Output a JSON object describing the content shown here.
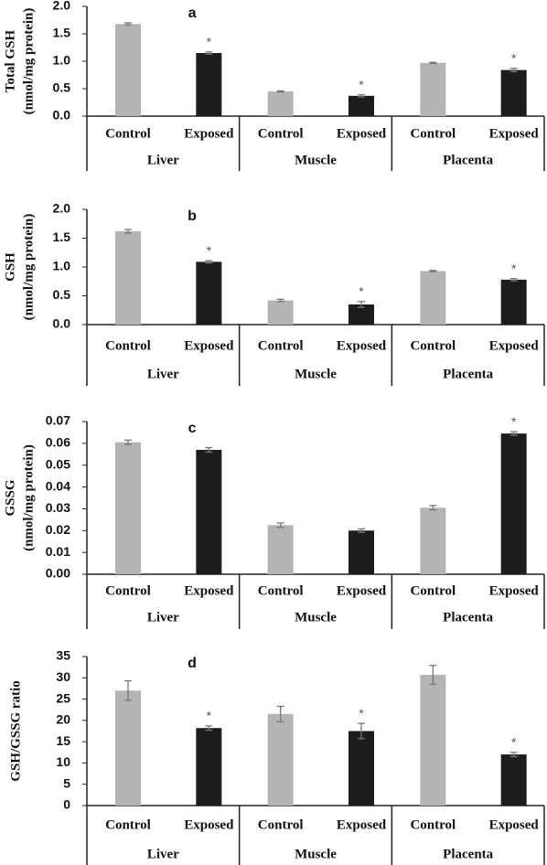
{
  "chart_data": [
    {
      "type": "bar",
      "panel": "a",
      "ylabel": [
        "Total GSH",
        "(nmol/mg protein)"
      ],
      "categories": [
        "Liver",
        "Muscle",
        "Placenta"
      ],
      "ylim": [
        0,
        2
      ],
      "yticks": [
        {
          "value": 0,
          "label": "0.0"
        },
        {
          "value": 0.5,
          "label": "0.5"
        },
        {
          "value": 1,
          "label": "1.0"
        },
        {
          "value": 1.5,
          "label": "1.5"
        },
        {
          "value": 2,
          "label": "2.0"
        }
      ],
      "significance_label": "*",
      "series": [
        {
          "name": "Control",
          "color": "#b4b4b4",
          "values": [
            1.68,
            0.45,
            0.97
          ],
          "errors": [
            0.02,
            0.01,
            0.01
          ],
          "significant": [
            false,
            false,
            false
          ]
        },
        {
          "name": "Exposed",
          "color": "#1c1c1c",
          "values": [
            1.15,
            0.37,
            0.84
          ],
          "errors": [
            0.02,
            0.02,
            0.03
          ],
          "significant": [
            true,
            true,
            true
          ]
        }
      ]
    },
    {
      "type": "bar",
      "panel": "b",
      "ylabel": [
        "GSH",
        "(nmol/mg protein)"
      ],
      "categories": [
        "Liver",
        "Muscle",
        "Placenta"
      ],
      "ylim": [
        0,
        2
      ],
      "yticks": [
        {
          "value": 0,
          "label": "0.0"
        },
        {
          "value": 0.5,
          "label": "0.5"
        },
        {
          "value": 1,
          "label": "1.0"
        },
        {
          "value": 1.5,
          "label": "1.5"
        },
        {
          "value": 2,
          "label": "2.0"
        }
      ],
      "significance_label": "*",
      "series": [
        {
          "name": "Control",
          "color": "#b4b4b4",
          "values": [
            1.62,
            0.42,
            0.93
          ],
          "errors": [
            0.03,
            0.02,
            0.01
          ],
          "significant": [
            false,
            false,
            false
          ]
        },
        {
          "name": "Exposed",
          "color": "#1c1c1c",
          "values": [
            1.09,
            0.35,
            0.78
          ],
          "errors": [
            0.02,
            0.05,
            0.02
          ],
          "significant": [
            true,
            true,
            true
          ]
        }
      ]
    },
    {
      "type": "bar",
      "panel": "c",
      "ylabel": [
        "GSSG",
        "(nmol/mg protein)"
      ],
      "categories": [
        "Liver",
        "Muscle",
        "Placenta"
      ],
      "ylim": [
        0,
        0.07
      ],
      "yticks": [
        {
          "value": 0,
          "label": "0.00"
        },
        {
          "value": 0.01,
          "label": "0.01"
        },
        {
          "value": 0.02,
          "label": "0.02"
        },
        {
          "value": 0.03,
          "label": "0.03"
        },
        {
          "value": 0.04,
          "label": "0.04"
        },
        {
          "value": 0.05,
          "label": "0.05"
        },
        {
          "value": 0.06,
          "label": "0.06"
        },
        {
          "value": 0.07,
          "label": "0.07"
        }
      ],
      "significance_label": "*",
      "series": [
        {
          "name": "Control",
          "color": "#b4b4b4",
          "values": [
            0.0605,
            0.0225,
            0.0305
          ],
          "errors": [
            0.001,
            0.001,
            0.001
          ],
          "significant": [
            false,
            false,
            false
          ]
        },
        {
          "name": "Exposed",
          "color": "#1c1c1c",
          "values": [
            0.057,
            0.02,
            0.0645
          ],
          "errors": [
            0.001,
            0.0008,
            0.0008
          ],
          "significant": [
            false,
            false,
            true
          ]
        }
      ]
    },
    {
      "type": "bar",
      "panel": "d",
      "ylabel": [
        "GSH/GSSG ratio"
      ],
      "categories": [
        "Liver",
        "Muscle",
        "Placenta"
      ],
      "ylim": [
        0,
        35
      ],
      "yticks": [
        0,
        5,
        10,
        15,
        20,
        25,
        30,
        35
      ],
      "significance_label": "*",
      "series": [
        {
          "name": "Control",
          "color": "#b4b4b4",
          "values": [
            27,
            21.5,
            30.7
          ],
          "errors": [
            2.3,
            1.8,
            2.2
          ],
          "significant": [
            false,
            false,
            false
          ]
        },
        {
          "name": "Exposed",
          "color": "#1c1c1c",
          "values": [
            18.2,
            17.5,
            12
          ],
          "errors": [
            0.5,
            1.8,
            0.5
          ],
          "significant": [
            true,
            true,
            true
          ]
        }
      ]
    }
  ]
}
